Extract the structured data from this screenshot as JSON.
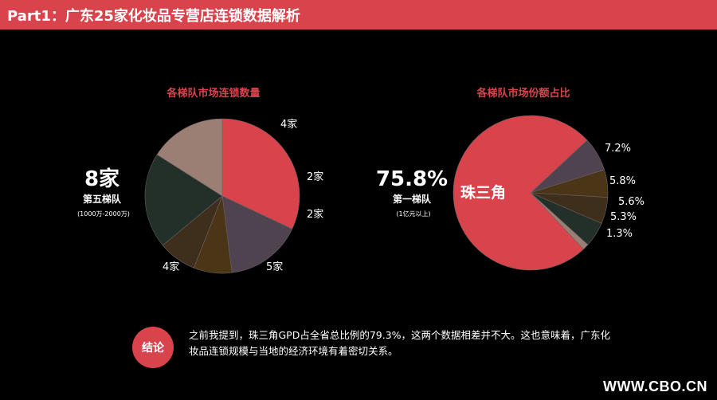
{
  "header": {
    "title": "Part1：广东25家化妆品专营店连锁数据解析"
  },
  "chart_data": [
    {
      "type": "pie",
      "title": "各梯队市场连锁数量",
      "slices": [
        {
          "label": "8家",
          "value": 8,
          "color": "#d9434b"
        },
        {
          "label": "4家",
          "value": 4,
          "color": "#4e434e"
        },
        {
          "label": "2家",
          "value": 2,
          "color": "#4a3617"
        },
        {
          "label": "2家",
          "value": 2,
          "color": "#3e2f1d"
        },
        {
          "label": "5家",
          "value": 5,
          "color": "#223029"
        },
        {
          "label": "4家",
          "value": 4,
          "color": "#9b7e74"
        }
      ],
      "highlight": {
        "value": "8家",
        "name": "第五梯队",
        "note": "(1000万-2000万)"
      }
    },
    {
      "type": "pie",
      "title": "各梯队市场份额占比",
      "slices": [
        {
          "label": "7.2%",
          "value": 7.2,
          "color": "#4e434e"
        },
        {
          "label": "5.8%",
          "value": 5.8,
          "color": "#4a3617"
        },
        {
          "label": "5.6%",
          "value": 5.6,
          "color": "#3e2f1d"
        },
        {
          "label": "5.3%",
          "value": 5.3,
          "color": "#223029"
        },
        {
          "label": "1.3%",
          "value": 1.3,
          "color": "#9b7e74"
        },
        {
          "label": "珠三角",
          "value": 75.8,
          "color": "#d9434b"
        }
      ],
      "highlight": {
        "value": "75.8%",
        "name": "第一梯队",
        "note": "(1亿元以上)"
      }
    }
  ],
  "conclusion": {
    "badge": "结论",
    "text": "之前我提到，珠三角GPD占全省总比例的79.3%，这两个数据相差并不大。这也意味着，广东化妆品连锁规模与当地的经济环境有着密切关系。"
  },
  "footer": {
    "site": "WWW.CBO.CN"
  }
}
